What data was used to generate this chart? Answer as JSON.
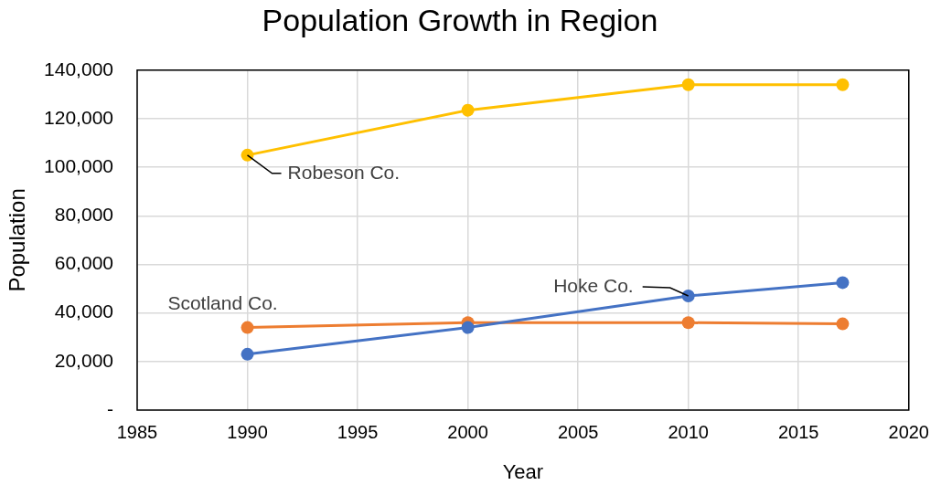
{
  "chart_data": {
    "type": "line",
    "title": "Population Growth in Region",
    "xlabel": "Year",
    "ylabel": "Population",
    "x": [
      1990,
      2000,
      2010,
      2017
    ],
    "series": [
      {
        "name": "Hoke Co.",
        "color": "#4472c4",
        "values": [
          23000,
          34000,
          47000,
          52500
        ]
      },
      {
        "name": "Scotland Co.",
        "color": "#ed7d31",
        "values": [
          34000,
          36000,
          36000,
          35500
        ]
      },
      {
        "name": "Robeson Co.",
        "color": "#ffc000",
        "values": [
          105000,
          123500,
          134000,
          134000
        ]
      }
    ],
    "xlim": [
      1985,
      2020
    ],
    "xticks": [
      1985,
      1990,
      1995,
      2000,
      2005,
      2010,
      2015,
      2020
    ],
    "ylim": [
      0,
      140000
    ],
    "yticks": [
      {
        "value": 0,
        "label": "-"
      },
      {
        "value": 20000,
        "label": "20,000"
      },
      {
        "value": 40000,
        "label": "40,000"
      },
      {
        "value": 60000,
        "label": "60,000"
      },
      {
        "value": 80000,
        "label": "80,000"
      },
      {
        "value": 100000,
        "label": "100,000"
      },
      {
        "value": 120000,
        "label": "120,000"
      },
      {
        "value": 140000,
        "label": "140,000"
      }
    ],
    "grid": true,
    "marker": "circle",
    "line_style": "solid"
  }
}
